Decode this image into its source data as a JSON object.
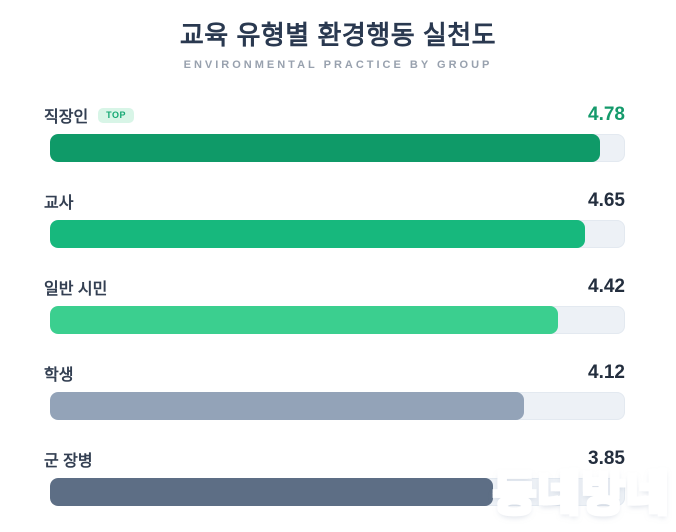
{
  "header": {
    "title": "교육 유형별 환경행동 실천도",
    "subtitle": "ENVIRONMENTAL PRACTICE BY GROUP"
  },
  "chart_data": {
    "type": "bar",
    "orientation": "horizontal",
    "title": "교육 유형별 환경행동 실천도",
    "subtitle": "ENVIRONMENTAL PRACTICE BY GROUP",
    "categories": [
      "직장인",
      "교사",
      "일반 시민",
      "학생",
      "군 장병"
    ],
    "values": [
      4.78,
      4.65,
      4.42,
      4.12,
      3.85
    ],
    "value_range": [
      0,
      5
    ],
    "grid": false,
    "legend": false,
    "track_color": "#edf1f6",
    "rows": [
      {
        "label": "직장인",
        "value": "4.78",
        "numeric": 4.78,
        "badge": "TOP",
        "bar_color": "#0f9a68",
        "value_color": "#149a6b"
      },
      {
        "label": "교사",
        "value": "4.65",
        "numeric": 4.65,
        "bar_color": "#17b87d",
        "value_color": "#232e3e"
      },
      {
        "label": "일반 시민",
        "value": "4.42",
        "numeric": 4.42,
        "bar_color": "#3bcf8f",
        "value_color": "#232e3e"
      },
      {
        "label": "학생",
        "value": "4.12",
        "numeric": 4.12,
        "bar_color": "#93a3b8",
        "value_color": "#232e3e"
      },
      {
        "label": "군 장병",
        "value": "3.85",
        "numeric": 3.85,
        "bar_color": "#5d6e85",
        "value_color": "#232e3e"
      }
    ],
    "badge_colors": {
      "background": "#d8f5e7",
      "text": "#15a873"
    }
  },
  "watermark": {
    "text": "동네방네"
  }
}
